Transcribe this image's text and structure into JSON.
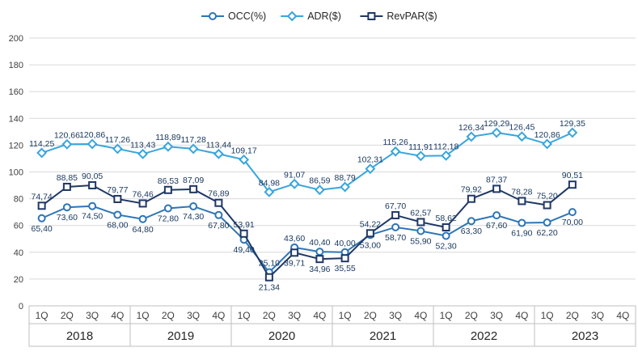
{
  "chart_data": {
    "type": "line",
    "title": "",
    "ylim": [
      0,
      200
    ],
    "ytick_step": 20,
    "grid": true,
    "legend_position": "top",
    "label_color": "#17375E",
    "axis_text_color": "#404040",
    "grid_color": "#D9D9D9",
    "axis_line_color": "#BFBFBF",
    "categories": [
      "1Q",
      "2Q",
      "3Q",
      "4Q",
      "1Q",
      "2Q",
      "3Q",
      "4Q",
      "1Q",
      "2Q",
      "3Q",
      "4Q",
      "1Q",
      "2Q",
      "3Q",
      "4Q",
      "1Q",
      "2Q",
      "3Q",
      "4Q",
      "1Q",
      "2Q",
      "3Q",
      "4Q"
    ],
    "year_groups": [
      {
        "label": "2018"
      },
      {
        "label": "2019"
      },
      {
        "label": "2020"
      },
      {
        "label": "2021"
      },
      {
        "label": "2022"
      },
      {
        "label": "2023"
      }
    ],
    "series": [
      {
        "id": "occ",
        "name": "OCC(%)",
        "marker": "circle",
        "color": "#2E75B6",
        "values": [
          65.4,
          73.6,
          74.5,
          68.0,
          64.8,
          72.8,
          74.3,
          67.8,
          49.4,
          25.1,
          43.6,
          40.4,
          40.0,
          53.0,
          58.7,
          55.9,
          52.3,
          63.3,
          67.6,
          61.9,
          62.2,
          70.0,
          null,
          null
        ],
        "labels": [
          "65,40",
          "73,60",
          "74,50",
          "68,00",
          "64,80",
          "72,80",
          "74,30",
          "67,80",
          "49,40",
          "25,10",
          "43,60",
          "40,40",
          "40,00",
          "53,00",
          "58,70",
          "55,90",
          "52,30",
          "63,30",
          "67,60",
          "61,90",
          "62,20",
          "70,00",
          null,
          null
        ]
      },
      {
        "id": "adr",
        "name": "ADR($)",
        "marker": "diamond",
        "color": "#38A6DC",
        "values": [
          114.25,
          120.66,
          120.86,
          117.26,
          113.43,
          118.89,
          117.28,
          113.44,
          109.17,
          84.98,
          91.07,
          86.59,
          88.79,
          102.31,
          115.26,
          111.91,
          112.18,
          126.34,
          129.29,
          126.45,
          120.86,
          129.35,
          null,
          null
        ],
        "labels": [
          "114,25",
          "120,66",
          "120,86",
          "117,26",
          "113,43",
          "118,89",
          "117,28",
          "113,44",
          "109,17",
          "84,98",
          "91,07",
          "86,59",
          "88,79",
          "102,31",
          "115,26",
          "111,91",
          "112,18",
          "126,34",
          "129,29",
          "126,45",
          "120,86",
          "129,35",
          null,
          null
        ]
      },
      {
        "id": "revpar",
        "name": "RevPAR($)",
        "marker": "square",
        "color": "#1F3864",
        "values": [
          74.74,
          88.85,
          90.05,
          79.77,
          76.46,
          86.53,
          87.09,
          76.89,
          53.91,
          21.34,
          39.71,
          34.96,
          35.55,
          54.22,
          67.7,
          62.57,
          58.62,
          79.92,
          87.37,
          78.28,
          75.2,
          90.51,
          null,
          null
        ],
        "labels": [
          "74,74",
          "88,85",
          "90,05",
          "79,77",
          "76,46",
          "86,53",
          "87,09",
          "76,89",
          "53,91",
          "21,34",
          "39,71",
          "34,96",
          "35,55",
          "54,22",
          "67,70",
          "62,57",
          "58,62",
          "79,92",
          "87,37",
          "78,28",
          "75,20",
          "90,51",
          null,
          null
        ]
      }
    ]
  }
}
